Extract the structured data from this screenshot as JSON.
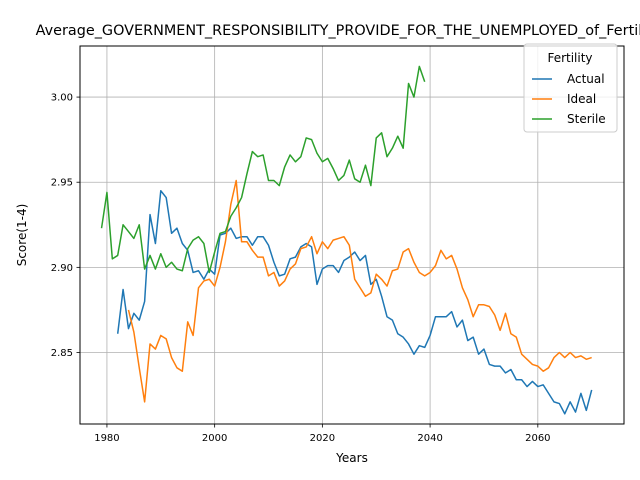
{
  "chart_data": {
    "type": "line",
    "title": "Average_GOVERNMENT_RESPONSIBILITY_PROVIDE_FOR_THE_UNEMPLOYED_of_Fertility",
    "xlabel": "Years",
    "ylabel": "Score(1-4)",
    "xlim": [
      1975,
      2076
    ],
    "ylim": [
      2.808,
      3.03
    ],
    "xticks": [
      1980,
      2000,
      2020,
      2040,
      2060
    ],
    "xtick_labels": [
      "1980",
      "2000",
      "2020",
      "2040",
      "2060"
    ],
    "yticks": [
      2.85,
      2.9,
      2.95,
      3.0
    ],
    "ytick_labels": [
      "2.85",
      "2.90",
      "2.95",
      "3.00"
    ],
    "grid": true,
    "legend": {
      "title": "Fertility",
      "position": "top-right"
    },
    "series": [
      {
        "name": "Actual",
        "color": "#1f77b4",
        "x": [
          1982,
          1983,
          1984,
          1985,
          1986,
          1987,
          1988,
          1989,
          1990,
          1991,
          1992,
          1993,
          1994,
          1995,
          1996,
          1997,
          1998,
          1999,
          2000,
          2001,
          2002,
          2003,
          2004,
          2005,
          2006,
          2007,
          2008,
          2009,
          2010,
          2011,
          2012,
          2013,
          2014,
          2015,
          2016,
          2017,
          2018,
          2019,
          2020,
          2021,
          2022,
          2023,
          2024,
          2025,
          2026,
          2027,
          2028,
          2029,
          2030,
          2031,
          2032,
          2033,
          2034,
          2035,
          2036,
          2037,
          2038,
          2039,
          2040,
          2041,
          2042,
          2043,
          2044,
          2045,
          2046,
          2047,
          2048,
          2049,
          2050,
          2051,
          2052,
          2053,
          2054,
          2055,
          2056,
          2057,
          2058,
          2059,
          2060,
          2061,
          2062,
          2063,
          2064,
          2065,
          2066,
          2067,
          2068,
          2069,
          2070
        ],
        "y": [
          2.861,
          2.887,
          2.864,
          2.873,
          2.869,
          2.88,
          2.931,
          2.914,
          2.945,
          2.941,
          2.92,
          2.923,
          2.914,
          2.91,
          2.897,
          2.898,
          2.893,
          2.899,
          2.896,
          2.919,
          2.92,
          2.923,
          2.917,
          2.918,
          2.918,
          2.913,
          2.918,
          2.918,
          2.913,
          2.903,
          2.895,
          2.896,
          2.905,
          2.906,
          2.912,
          2.914,
          2.912,
          2.89,
          2.899,
          2.901,
          2.901,
          2.897,
          2.904,
          2.906,
          2.909,
          2.904,
          2.907,
          2.89,
          2.893,
          2.883,
          2.871,
          2.869,
          2.861,
          2.859,
          2.855,
          2.849,
          2.854,
          2.853,
          2.86,
          2.871,
          2.871,
          2.871,
          2.874,
          2.865,
          2.869,
          2.857,
          2.859,
          2.849,
          2.852,
          2.843,
          2.842,
          2.842,
          2.838,
          2.84,
          2.834,
          2.834,
          2.83,
          2.833,
          2.83,
          2.831,
          2.826,
          2.821,
          2.82,
          2.814,
          2.821,
          2.815,
          2.826,
          2.816,
          2.828
        ]
      },
      {
        "name": "Ideal",
        "color": "#ff7f0e",
        "x": [
          1984,
          1985,
          1986,
          1987,
          1988,
          1989,
          1990,
          1991,
          1992,
          1993,
          1994,
          1995,
          1996,
          1997,
          1998,
          1999,
          2000,
          2001,
          2002,
          2003,
          2004,
          2005,
          2006,
          2007,
          2008,
          2009,
          2010,
          2011,
          2012,
          2013,
          2014,
          2015,
          2016,
          2017,
          2018,
          2019,
          2020,
          2021,
          2022,
          2023,
          2024,
          2025,
          2026,
          2027,
          2028,
          2029,
          2030,
          2031,
          2032,
          2033,
          2034,
          2035,
          2036,
          2037,
          2038,
          2039,
          2040,
          2041,
          2042,
          2043,
          2044,
          2045,
          2046,
          2047,
          2048,
          2049,
          2050,
          2051,
          2052,
          2053,
          2054,
          2055,
          2056,
          2057,
          2058,
          2059,
          2060,
          2061,
          2062,
          2063,
          2064,
          2065,
          2066,
          2067,
          2068,
          2069,
          2070
        ],
        "y": [
          2.875,
          2.862,
          2.841,
          2.821,
          2.855,
          2.852,
          2.86,
          2.858,
          2.847,
          2.841,
          2.839,
          2.868,
          2.86,
          2.888,
          2.892,
          2.893,
          2.889,
          2.9,
          2.915,
          2.937,
          2.951,
          2.915,
          2.915,
          2.91,
          2.906,
          2.906,
          2.895,
          2.897,
          2.889,
          2.892,
          2.899,
          2.902,
          2.911,
          2.912,
          2.918,
          2.908,
          2.915,
          2.911,
          2.916,
          2.917,
          2.918,
          2.913,
          2.893,
          2.888,
          2.883,
          2.885,
          2.896,
          2.893,
          2.889,
          2.898,
          2.899,
          2.909,
          2.911,
          2.903,
          2.897,
          2.895,
          2.897,
          2.901,
          2.91,
          2.905,
          2.907,
          2.899,
          2.888,
          2.881,
          2.871,
          2.878,
          2.878,
          2.877,
          2.872,
          2.863,
          2.873,
          2.861,
          2.859,
          2.849,
          2.846,
          2.843,
          2.842,
          2.839,
          2.841,
          2.847,
          2.85,
          2.847,
          2.85,
          2.847,
          2.848,
          2.846,
          2.847
        ]
      },
      {
        "name": "Sterile",
        "color": "#2ca02c",
        "x": [
          1979,
          1980,
          1981,
          1982,
          1983,
          1984,
          1985,
          1986,
          1987,
          1988,
          1989,
          1990,
          1991,
          1992,
          1993,
          1994,
          1995,
          1996,
          1997,
          1998,
          1999,
          2000,
          2001,
          2002,
          2003,
          2004,
          2005,
          2006,
          2007,
          2008,
          2009,
          2010,
          2011,
          2012,
          2013,
          2014,
          2015,
          2016,
          2017,
          2018,
          2019,
          2020,
          2021,
          2022,
          2023,
          2024,
          2025,
          2026,
          2027,
          2028,
          2029,
          2030,
          2031,
          2032,
          2033,
          2034,
          2035,
          2036,
          2037,
          2038,
          2039
        ],
        "y": [
          2.923,
          2.944,
          2.905,
          2.907,
          2.925,
          2.921,
          2.917,
          2.925,
          2.899,
          2.907,
          2.899,
          2.908,
          2.9,
          2.903,
          2.899,
          2.898,
          2.911,
          2.916,
          2.918,
          2.914,
          2.897,
          2.909,
          2.92,
          2.921,
          2.93,
          2.935,
          2.941,
          2.955,
          2.968,
          2.965,
          2.966,
          2.951,
          2.951,
          2.948,
          2.959,
          2.966,
          2.962,
          2.965,
          2.976,
          2.975,
          2.967,
          2.962,
          2.964,
          2.958,
          2.951,
          2.954,
          2.963,
          2.952,
          2.95,
          2.96,
          2.948,
          2.976,
          2.979,
          2.965,
          2.97,
          2.977,
          2.97,
          3.008,
          3.0,
          3.018,
          3.009
        ]
      }
    ]
  }
}
